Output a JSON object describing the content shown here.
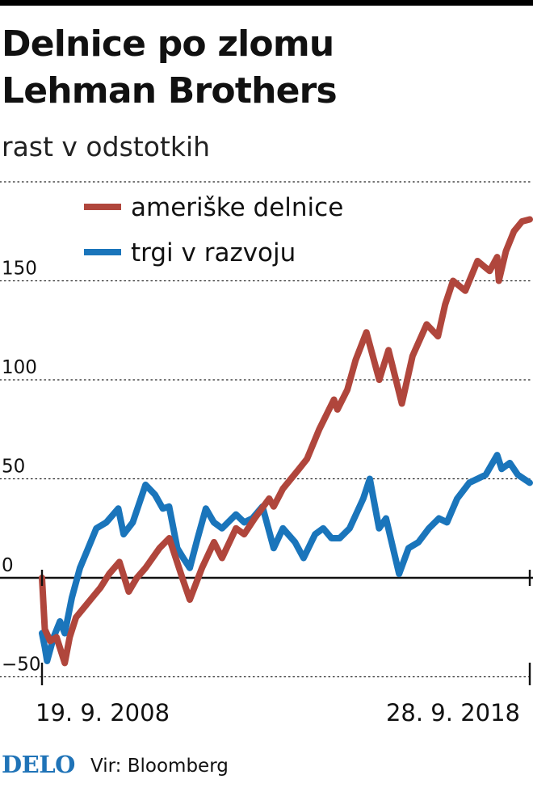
{
  "header": {
    "title_line1": "Delnice po zlomu",
    "title_line2": "Lehman Brothers",
    "subtitle": "rast v odstotkih"
  },
  "footer": {
    "logo": "DELO",
    "source": "Vir: Bloomberg"
  },
  "colors": {
    "us_stocks": "#b0463c",
    "emerging_markets": "#1a75bb",
    "logo": "#1f73b7"
  },
  "chart_data": {
    "type": "line",
    "title": "Delnice po zlomu Lehman Brothers",
    "subtitle": "rast v odstotkih",
    "xlabel": "",
    "ylabel": "",
    "x_ticks": [
      "19. 9. 2008",
      "28. 9. 2018"
    ],
    "x_range": [
      "2008-09-19",
      "2018-09-28"
    ],
    "y_ticks": [
      "−50",
      "0",
      "50",
      "100",
      "150"
    ],
    "y_tick_values": [
      -50,
      0,
      50,
      100,
      150
    ],
    "ylim": [
      -50,
      200
    ],
    "grid": "dotted horizontal",
    "legend_position": "top-left",
    "series": [
      {
        "name": "ameriške delnice",
        "color": "#b0463c",
        "x": [
          "2008-09-19",
          "2008-10-10",
          "2008-11-20",
          "2009-01-06",
          "2009-03-09",
          "2009-04-15",
          "2009-06-01",
          "2009-08-01",
          "2009-10-01",
          "2009-12-01",
          "2010-02-05",
          "2010-04-23",
          "2010-07-02",
          "2010-09-01",
          "2010-11-05",
          "2011-02-18",
          "2011-05-02",
          "2011-08-08",
          "2011-10-03",
          "2012-01-03",
          "2012-04-02",
          "2012-06-01",
          "2012-09-14",
          "2012-11-15",
          "2013-02-01",
          "2013-05-21",
          "2013-06-24",
          "2013-09-01",
          "2013-12-31",
          "2014-03-01",
          "2014-06-01",
          "2014-09-19",
          "2014-10-15",
          "2014-12-29",
          "2015-03-01",
          "2015-05-21",
          "2015-08-25",
          "2015-11-03",
          "2016-02-11",
          "2016-05-01",
          "2016-08-15",
          "2016-11-08",
          "2017-01-01",
          "2017-03-01",
          "2017-06-01",
          "2017-09-01",
          "2017-12-01",
          "2018-01-26",
          "2018-02-08",
          "2018-04-02",
          "2018-06-01",
          "2018-08-01",
          "2018-09-28"
        ],
        "values": [
          0,
          -26,
          -32,
          -30,
          -43,
          -30,
          -20,
          -15,
          -10,
          -5,
          2,
          8,
          -7,
          0,
          5,
          15,
          20,
          0,
          -11,
          5,
          18,
          10,
          25,
          22,
          30,
          40,
          36,
          45,
          55,
          60,
          75,
          90,
          85,
          95,
          110,
          124,
          100,
          115,
          88,
          112,
          128,
          122,
          138,
          150,
          145,
          160,
          155,
          162,
          150,
          165,
          175,
          180,
          181
        ]
      },
      {
        "name": "trgi v razvoju",
        "color": "#1a75bb",
        "x": [
          "2008-09-19",
          "2008-10-10",
          "2008-10-27",
          "2008-12-15",
          "2009-02-01",
          "2009-03-09",
          "2009-05-01",
          "2009-07-01",
          "2009-09-01",
          "2009-11-01",
          "2010-01-15",
          "2010-04-15",
          "2010-05-25",
          "2010-08-01",
          "2010-10-01",
          "2010-11-05",
          "2011-01-15",
          "2011-03-15",
          "2011-05-01",
          "2011-07-01",
          "2011-08-15",
          "2011-10-03",
          "2011-12-01",
          "2012-02-01",
          "2012-04-01",
          "2012-06-01",
          "2012-09-14",
          "2012-11-15",
          "2013-01-15",
          "2013-04-01",
          "2013-06-24",
          "2013-09-01",
          "2013-12-01",
          "2014-02-03",
          "2014-05-01",
          "2014-07-01",
          "2014-09-01",
          "2014-11-01",
          "2015-01-15",
          "2015-04-27",
          "2015-06-15",
          "2015-08-24",
          "2015-10-15",
          "2016-01-21",
          "2016-04-01",
          "2016-06-15",
          "2016-09-01",
          "2016-11-15",
          "2017-01-15",
          "2017-04-01",
          "2017-07-01",
          "2017-09-01",
          "2017-11-01",
          "2018-01-26",
          "2018-03-01",
          "2018-05-01",
          "2018-07-01",
          "2018-09-28"
        ],
        "values": [
          -28,
          -35,
          -42,
          -30,
          -22,
          -28,
          -10,
          5,
          15,
          25,
          28,
          35,
          22,
          28,
          40,
          47,
          42,
          35,
          36,
          15,
          10,
          5,
          20,
          35,
          28,
          25,
          32,
          28,
          30,
          36,
          15,
          25,
          18,
          10,
          22,
          25,
          20,
          20,
          25,
          40,
          50,
          25,
          30,
          2,
          15,
          18,
          25,
          30,
          28,
          40,
          48,
          50,
          52,
          62,
          55,
          58,
          52,
          48
        ]
      }
    ]
  }
}
